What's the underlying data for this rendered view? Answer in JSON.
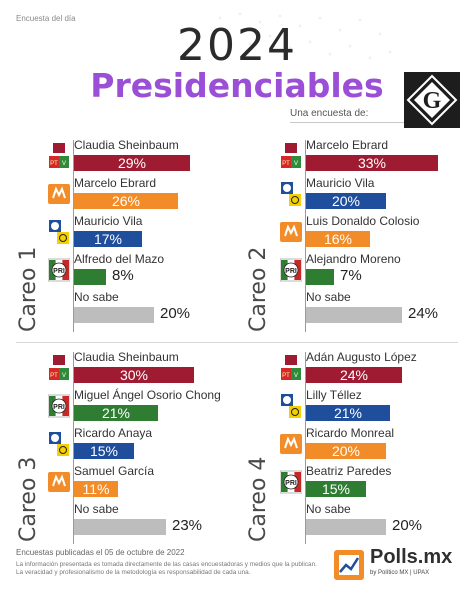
{
  "header": {
    "top_label": "Encuesta del día",
    "year": "2024",
    "title": "Presidenciables",
    "sponsor_text": "Una encuesta de:"
  },
  "colors": {
    "title": "#9b4fd6",
    "morena": "#9e1b32",
    "mc": "#f28c28",
    "pan": "#1f4e9c",
    "pri": "#2f7d32",
    "nosabe": "#bdbdbd"
  },
  "chart_data": [
    {
      "type": "bar",
      "title": "Careo 1",
      "categories": [
        "Claudia Sheinbaum",
        "Marcelo Ebrard",
        "Mauricio Vila",
        "Alfredo del Mazo",
        "No sabe"
      ],
      "values": [
        29,
        26,
        17,
        8,
        20
      ],
      "value_labels": [
        "29%",
        "26%",
        "17%",
        "8%",
        "20%"
      ],
      "parties": [
        "morena-pt-pv",
        "mc",
        "pan-prd",
        "pri",
        ""
      ],
      "colors": [
        "#9e1b32",
        "#f28c28",
        "#1f4e9c",
        "#2f7d32",
        "#bdbdbd"
      ]
    },
    {
      "type": "bar",
      "title": "Careo 2",
      "categories": [
        "Marcelo Ebrard",
        "Mauricio Vila",
        "Luis Donaldo Colosio",
        "Alejandro Moreno",
        "No sabe"
      ],
      "values": [
        33,
        20,
        16,
        7,
        24
      ],
      "value_labels": [
        "33%",
        "20%",
        "16%",
        "7%",
        "24%"
      ],
      "parties": [
        "morena-pt-pv",
        "pan-prd",
        "mc",
        "pri",
        ""
      ],
      "colors": [
        "#9e1b32",
        "#1f4e9c",
        "#f28c28",
        "#2f7d32",
        "#bdbdbd"
      ]
    },
    {
      "type": "bar",
      "title": "Careo 3",
      "categories": [
        "Claudia Sheinbaum",
        "Miguel Ángel Osorio Chong",
        "Ricardo Anaya",
        "Samuel García",
        "No sabe"
      ],
      "values": [
        30,
        21,
        15,
        11,
        23
      ],
      "value_labels": [
        "30%",
        "21%",
        "15%",
        "11%",
        "23%"
      ],
      "parties": [
        "morena-pt-pv",
        "pri",
        "pan-prd",
        "mc",
        ""
      ],
      "colors": [
        "#9e1b32",
        "#2f7d32",
        "#1f4e9c",
        "#f28c28",
        "#bdbdbd"
      ]
    },
    {
      "type": "bar",
      "title": "Careo 4",
      "categories": [
        "Adán Augusto López",
        "Lilly Téllez",
        "Ricardo Monreal",
        "Beatriz Paredes",
        "No sabe"
      ],
      "values": [
        24,
        21,
        20,
        15,
        20
      ],
      "value_labels": [
        "24%",
        "21%",
        "20%",
        "15%",
        "20%"
      ],
      "parties": [
        "morena-pt-pv",
        "pan-prd",
        "mc",
        "pri",
        ""
      ],
      "colors": [
        "#9e1b32",
        "#1f4e9c",
        "#f28c28",
        "#2f7d32",
        "#bdbdbd"
      ]
    }
  ],
  "footer": {
    "published": "Encuestas publicadas el 05 de octubre de 2022",
    "disclaimer_1": "La información presentada es tomada directamente de las casas encuestadoras y medios que la publican.",
    "disclaimer_2": "La veracidad y profesionalismo de la metodología es responsabilidad de cada una.",
    "brand": "Polls.mx",
    "brand_sub": "by Político MX | UPAX"
  }
}
